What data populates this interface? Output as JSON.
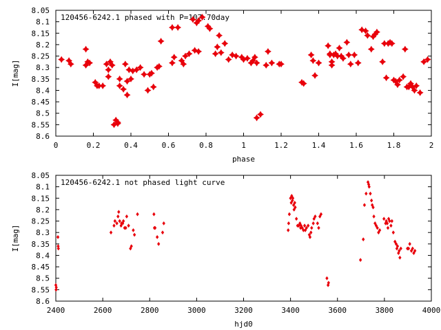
{
  "colors": {
    "points": "#e8000b",
    "axes": "#000000",
    "background": "#ffffff"
  },
  "chart_data": [
    {
      "type": "scatter",
      "title": "120456-6242.1 phased with P=107.70day",
      "xlabel": "phase",
      "ylabel": "I[mag]",
      "xlim": [
        0,
        2
      ],
      "ylim": [
        8.05,
        8.6
      ],
      "y_inverted": true,
      "grid": false,
      "legend": "none",
      "marker": "filled-star",
      "x_ticks": [
        "0",
        "0.2",
        "0.4",
        "0.6",
        "0.8",
        "1",
        "1.2",
        "1.4",
        "1.6",
        "1.8",
        "2"
      ],
      "y_ticks": [
        "8.05",
        "8.1",
        "8.15",
        "8.2",
        "8.25",
        "8.3",
        "8.35",
        "8.4",
        "8.45",
        "8.5",
        "8.55",
        "8.6"
      ],
      "series": [
        {
          "x": [
            0.03,
            0.07,
            0.08,
            0.16,
            0.16,
            0.17,
            0.18,
            0.21,
            0.22,
            0.23,
            0.25,
            0.27,
            0.28,
            0.28,
            0.29,
            0.3,
            0.31,
            0.32,
            0.33,
            0.33,
            0.34,
            0.34,
            0.36,
            0.37,
            0.38,
            0.38,
            0.39,
            0.4,
            0.41,
            0.43,
            0.45,
            0.47,
            0.49,
            0.5,
            0.51,
            0.52,
            0.54,
            0.55,
            0.56,
            0.62,
            0.62,
            0.63,
            0.65,
            0.67,
            0.68,
            0.69,
            0.71,
            0.73,
            0.74,
            0.75,
            0.76,
            0.76,
            0.78,
            0.81,
            0.82,
            0.85,
            0.86,
            0.87,
            0.88,
            0.9,
            0.92,
            0.94,
            0.96,
            0.99,
            1.0,
            1.02,
            1.04,
            1.05,
            1.06,
            1.07,
            1.07,
            1.09,
            1.12,
            1.13,
            1.15,
            1.19,
            1.2,
            1.31,
            1.32,
            1.36,
            1.37,
            1.38,
            1.4,
            1.45,
            1.46,
            1.46,
            1.47,
            1.47,
            1.48,
            1.49,
            1.5,
            1.51,
            1.52,
            1.53,
            1.55,
            1.56,
            1.57,
            1.59,
            1.61,
            1.63,
            1.65,
            1.66,
            1.68,
            1.69,
            1.7,
            1.71,
            1.74,
            1.75,
            1.76,
            1.77,
            1.78,
            1.79,
            1.8,
            1.81,
            1.82,
            1.83,
            1.85,
            1.86,
            1.87,
            1.88,
            1.89,
            1.9,
            1.91,
            1.92,
            1.94,
            1.96,
            1.98
          ],
          "y": [
            8.265,
            8.27,
            8.285,
            8.29,
            8.22,
            8.275,
            8.28,
            8.365,
            8.38,
            8.38,
            8.38,
            8.285,
            8.31,
            8.34,
            8.275,
            8.29,
            8.55,
            8.53,
            8.545,
            8.54,
            8.35,
            8.38,
            8.395,
            8.285,
            8.42,
            8.36,
            8.31,
            8.35,
            8.315,
            8.31,
            8.3,
            8.33,
            8.4,
            8.33,
            8.325,
            8.385,
            8.3,
            8.295,
            8.185,
            8.125,
            8.28,
            8.255,
            8.125,
            8.27,
            8.285,
            8.25,
            8.24,
            8.09,
            8.225,
            8.105,
            8.23,
            8.095,
            8.08,
            8.12,
            8.13,
            8.24,
            8.21,
            8.16,
            8.235,
            8.195,
            8.265,
            8.245,
            8.25,
            8.255,
            8.265,
            8.26,
            8.28,
            8.27,
            8.255,
            8.52,
            8.28,
            8.505,
            8.29,
            8.23,
            8.28,
            8.285,
            8.285,
            8.365,
            8.37,
            8.245,
            8.27,
            8.335,
            8.28,
            8.205,
            8.245,
            8.24,
            8.29,
            8.275,
            8.245,
            8.24,
            8.25,
            8.215,
            8.25,
            8.26,
            8.19,
            8.245,
            8.285,
            8.245,
            8.28,
            8.135,
            8.14,
            8.16,
            8.22,
            8.165,
            8.155,
            8.145,
            8.275,
            8.195,
            8.345,
            8.195,
            8.19,
            8.195,
            8.355,
            8.36,
            8.375,
            8.355,
            8.34,
            8.22,
            8.385,
            8.385,
            8.37,
            8.385,
            8.4,
            8.38,
            8.41,
            8.275,
            8.265
          ]
        }
      ]
    },
    {
      "type": "scatter",
      "title": "120456-6242.1 not phased light curve",
      "xlabel": "hjd0",
      "ylabel": "I[mag]",
      "xlim": [
        2400,
        4000
      ],
      "ylim": [
        8.05,
        8.6
      ],
      "y_inverted": true,
      "grid": false,
      "legend": "none",
      "marker": "small-diamond",
      "x_ticks": [
        "2400",
        "2600",
        "2800",
        "3000",
        "3200",
        "3400",
        "3600",
        "3800",
        "4000"
      ],
      "y_ticks": [
        "8.05",
        "8.1",
        "8.15",
        "8.2",
        "8.25",
        "8.3",
        "8.35",
        "8.4",
        "8.45",
        "8.5",
        "8.55",
        "8.6"
      ],
      "series": [
        {
          "x": [
            2400,
            2401,
            2402,
            2409,
            2410,
            2411,
            2635,
            2648,
            2652,
            2660,
            2665,
            2668,
            2672,
            2678,
            2680,
            2685,
            2688,
            2693,
            2698,
            2702,
            2710,
            2718,
            2722,
            2730,
            2735,
            2748,
            2818,
            2820,
            2823,
            2832,
            2838,
            2855,
            2860,
            3390,
            3392,
            3395,
            3400,
            3403,
            3405,
            3408,
            3410,
            3413,
            3415,
            3418,
            3420,
            3425,
            3430,
            3435,
            3440,
            3443,
            3445,
            3450,
            3455,
            3460,
            3463,
            3468,
            3475,
            3480,
            3483,
            3487,
            3490,
            3497,
            3500,
            3505,
            3515,
            3520,
            3525,
            3530,
            3555,
            3560,
            3562,
            3698,
            3710,
            3715,
            3722,
            3730,
            3733,
            3735,
            3740,
            3745,
            3748,
            3752,
            3755,
            3760,
            3765,
            3770,
            3775,
            3780,
            3798,
            3805,
            3808,
            3812,
            3815,
            3818,
            3822,
            3828,
            3832,
            3838,
            3845,
            3850,
            3853,
            3856,
            3860,
            3863,
            3866,
            3870,
            3898,
            3903,
            3908,
            3915,
            3920,
            3925,
            3930
          ],
          "y": [
            8.53,
            8.55,
            8.54,
            8.32,
            8.36,
            8.37,
            8.3,
            8.27,
            8.25,
            8.26,
            8.23,
            8.21,
            8.25,
            8.27,
            8.26,
            8.26,
            8.25,
            8.28,
            8.28,
            8.23,
            8.27,
            8.37,
            8.36,
            8.29,
            8.31,
            8.22,
            8.22,
            8.28,
            8.28,
            8.32,
            8.35,
            8.3,
            8.26,
            8.29,
            8.26,
            8.22,
            8.15,
            8.17,
            8.14,
            8.16,
            8.15,
            8.18,
            8.2,
            8.17,
            8.19,
            8.24,
            8.27,
            8.27,
            8.26,
            8.28,
            8.27,
            8.28,
            8.29,
            8.27,
            8.29,
            8.28,
            8.27,
            8.31,
            8.32,
            8.3,
            8.28,
            8.26,
            8.24,
            8.23,
            8.26,
            8.28,
            8.23,
            8.22,
            8.5,
            8.53,
            8.52,
            8.42,
            8.33,
            8.18,
            8.13,
            8.08,
            8.09,
            8.1,
            8.13,
            8.16,
            8.18,
            8.19,
            8.23,
            8.26,
            8.27,
            8.28,
            8.3,
            8.29,
            8.24,
            8.26,
            8.25,
            8.26,
            8.28,
            8.24,
            8.25,
            8.27,
            8.25,
            8.3,
            8.34,
            8.35,
            8.37,
            8.36,
            8.39,
            8.38,
            8.41,
            8.37,
            8.37,
            8.37,
            8.35,
            8.38,
            8.37,
            8.39,
            8.38
          ]
        }
      ]
    }
  ]
}
